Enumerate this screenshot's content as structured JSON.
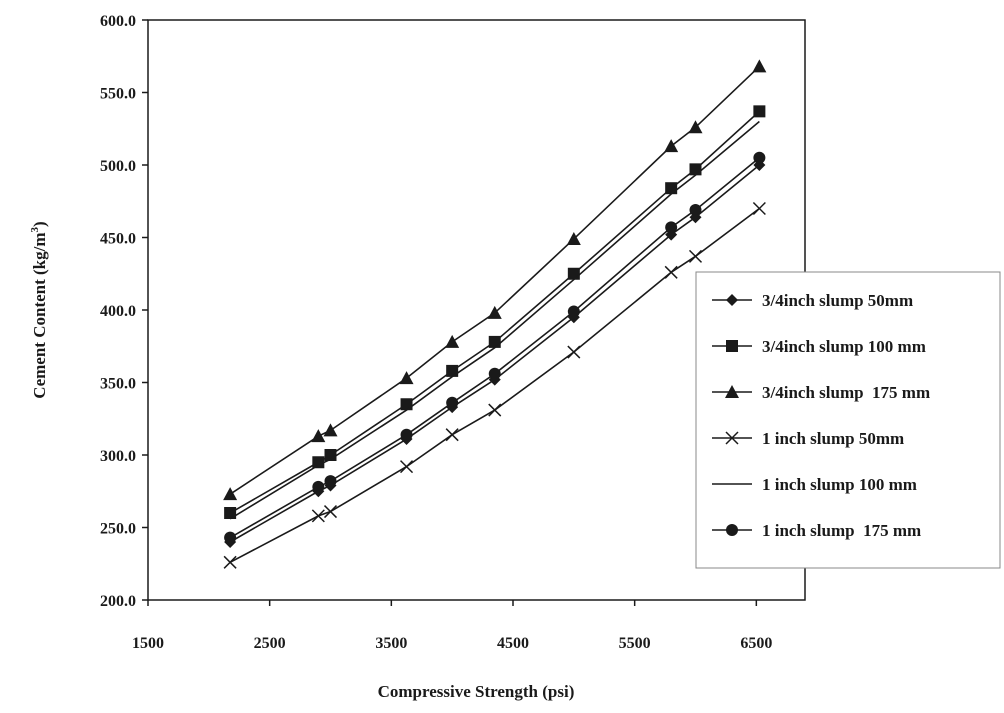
{
  "chart_data": {
    "type": "line",
    "title": "",
    "xlabel": "Compressive Strength (psi)",
    "ylabel_prefix": "Cement Content (kg/m",
    "ylabel_sup": "3",
    "ylabel_suffix": ")",
    "xlim": [
      1500,
      6900
    ],
    "ylim": [
      200,
      600
    ],
    "x_ticks": [
      1500,
      2500,
      3500,
      4500,
      5500,
      6500
    ],
    "y_ticks": [
      "200.0",
      "250.0",
      "300.0",
      "350.0",
      "400.0",
      "450.0",
      "500.0",
      "550.0",
      "600.0"
    ],
    "grid": false,
    "legend_position": "right",
    "x": [
      2175,
      2900,
      3000,
      3625,
      4000,
      4350,
      5000,
      5800,
      6000,
      6525
    ],
    "series": [
      {
        "name": "3/4inch slump 50mm",
        "marker": "diamond",
        "values": [
          240,
          275,
          279,
          311,
          333,
          352,
          395,
          452,
          464,
          500
        ]
      },
      {
        "name": "3/4inch slump 100 mm",
        "marker": "square",
        "values": [
          260,
          295,
          300,
          335,
          358,
          378,
          425,
          484,
          497,
          537
        ]
      },
      {
        "name": "3/4inch slump  175 mm",
        "marker": "triangle",
        "values": [
          273,
          313,
          317,
          353,
          378,
          398,
          449,
          513,
          526,
          568
        ]
      },
      {
        "name": "1 inch slump 50mm",
        "marker": "x",
        "values": [
          226,
          258,
          261,
          292,
          314,
          331,
          371,
          426,
          437,
          470
        ]
      },
      {
        "name": "1 inch slump 100 mm",
        "marker": "none",
        "values": [
          256,
          293,
          297,
          331,
          354,
          374,
          421,
          480,
          493,
          530
        ]
      },
      {
        "name": "1 inch slump  175 mm",
        "marker": "circle",
        "values": [
          243,
          278,
          282,
          314,
          336,
          356,
          399,
          457,
          469,
          505
        ]
      }
    ]
  }
}
